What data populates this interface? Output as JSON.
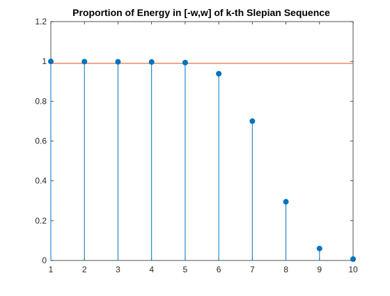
{
  "chart_data": {
    "type": "stem",
    "title": "Proportion of Energy in [-w,w] of k-th Slepian Sequence",
    "xlabel": "",
    "ylabel": "",
    "x": [
      1,
      2,
      3,
      4,
      5,
      6,
      7,
      8,
      9,
      10
    ],
    "values": [
      0.9999,
      0.999,
      0.998,
      0.997,
      0.994,
      0.938,
      0.7,
      0.295,
      0.06,
      0.007
    ],
    "xlim": [
      1,
      10
    ],
    "ylim": [
      0,
      1.2
    ],
    "xticks": [
      "1",
      "2",
      "3",
      "4",
      "5",
      "6",
      "7",
      "8",
      "9",
      "10"
    ],
    "yticks": [
      "0",
      "0.2",
      "0.4",
      "0.6",
      "0.8",
      "1",
      "1.2"
    ],
    "reference_line": {
      "y": 0.99
    },
    "grid": false,
    "colors": {
      "stem": "#0072BD",
      "marker": "#0072BD",
      "reference_line": "#D95319",
      "axes": "#262626"
    }
  }
}
